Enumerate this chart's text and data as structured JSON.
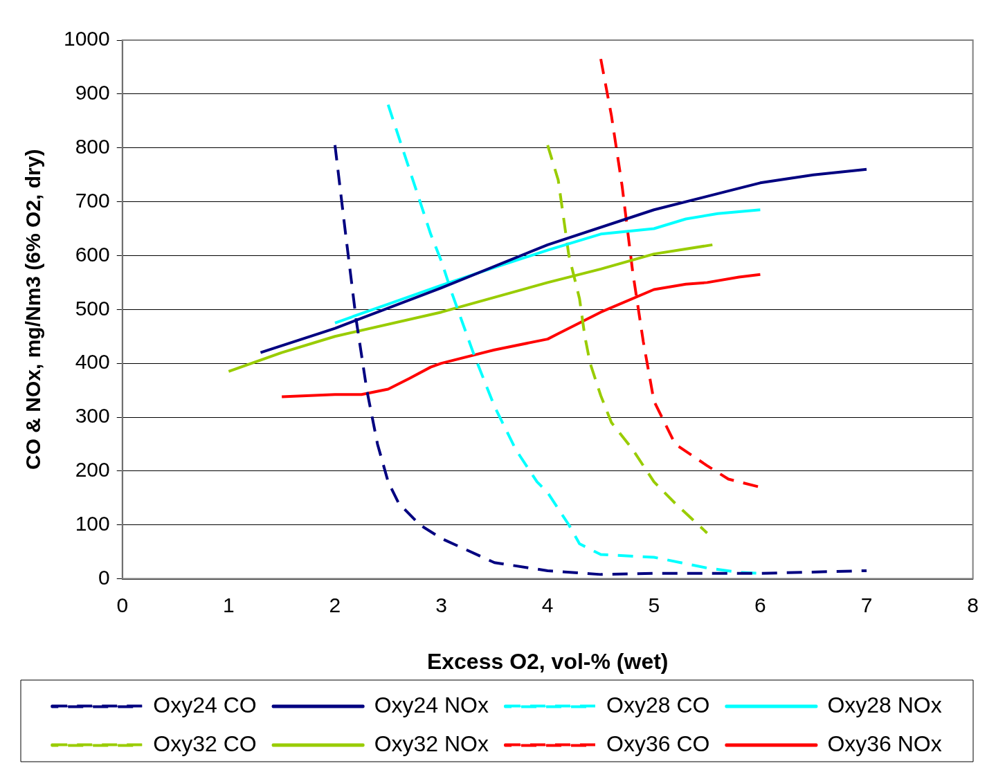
{
  "chart_data": {
    "type": "line",
    "xlabel": "Excess O2, vol-% (wet)",
    "ylabel": "CO & NOx, mg/Nm3 (6% O2, dry)",
    "xlim": [
      0,
      8
    ],
    "xticks": [
      0,
      1,
      2,
      3,
      4,
      5,
      6,
      7,
      8
    ],
    "ylim": [
      0,
      1000
    ],
    "yticks": [
      0,
      100,
      200,
      300,
      400,
      500,
      600,
      700,
      800,
      900,
      1000
    ],
    "grid": "y",
    "legend": "bottom",
    "marker": "none",
    "series": [
      {
        "name": "Oxy24 CO",
        "color": "#000080",
        "line_style": "dashed",
        "x": [
          2.0,
          2.1,
          2.2,
          2.3,
          2.4,
          2.5,
          2.6,
          2.8,
          3.0,
          3.5,
          4.0,
          4.5,
          5,
          6,
          7
        ],
        "values": [
          805,
          640,
          480,
          350,
          250,
          180,
          140,
          100,
          75,
          30,
          15,
          8,
          10,
          10,
          15
        ]
      },
      {
        "name": "Oxy24 NOx",
        "color": "#000080",
        "line_style": "solid",
        "x": [
          1.3,
          2,
          3,
          4,
          5,
          5.8,
          6,
          6.5,
          7
        ],
        "values": [
          420,
          465,
          540,
          620,
          685,
          725,
          735,
          750,
          760
        ]
      },
      {
        "name": "Oxy28 CO",
        "color": "#00ffff",
        "line_style": "dashed",
        "x": [
          2.5,
          2.7,
          2.9,
          3.0,
          3.1,
          3.3,
          3.5,
          3.7,
          3.9,
          4.0,
          4.2,
          4.3,
          4.5,
          5,
          5.5,
          5.8,
          6
        ],
        "values": [
          880,
          760,
          640,
          590,
          530,
          420,
          320,
          240,
          180,
          160,
          100,
          65,
          45,
          40,
          20,
          12,
          10
        ]
      },
      {
        "name": "Oxy28 NOx",
        "color": "#00ffff",
        "line_style": "solid",
        "x": [
          2,
          2.5,
          3,
          3.5,
          4,
          4.5,
          5,
          5.3,
          5.6,
          6
        ],
        "values": [
          475,
          510,
          545,
          578,
          610,
          640,
          650,
          668,
          678,
          685
        ]
      },
      {
        "name": "Oxy32 CO",
        "color": "#99cc00",
        "line_style": "dashed",
        "x": [
          4,
          4.1,
          4.2,
          4.3,
          4.35,
          4.4,
          4.5,
          4.6,
          4.8,
          5,
          5.2,
          5.5
        ],
        "values": [
          805,
          740,
          600,
          520,
          450,
          400,
          340,
          290,
          240,
          180,
          140,
          85
        ]
      },
      {
        "name": "Oxy32 NOx",
        "color": "#99cc00",
        "line_style": "solid",
        "x": [
          1,
          1.5,
          2,
          3,
          4,
          4.5,
          5,
          5.55
        ],
        "values": [
          385,
          420,
          450,
          495,
          550,
          575,
          603,
          620
        ]
      },
      {
        "name": "Oxy36 CO",
        "color": "#ff0000",
        "line_style": "dashed",
        "x": [
          4.5,
          4.6,
          4.7,
          4.8,
          4.9,
          5,
          5.1,
          5.2,
          5.5,
          5.7,
          6
        ],
        "values": [
          965,
          860,
          730,
          570,
          440,
          330,
          290,
          250,
          210,
          185,
          170
        ]
      },
      {
        "name": "Oxy36 NOx",
        "color": "#ff0000",
        "line_style": "solid",
        "x": [
          1.5,
          2,
          2.25,
          2.5,
          2.7,
          2.9,
          3,
          3.5,
          4,
          4.1,
          4.5,
          5,
          5.3,
          5.5,
          5.8,
          6
        ],
        "values": [
          338,
          342,
          342,
          352,
          372,
          393,
          400,
          425,
          445,
          455,
          495,
          537,
          547,
          550,
          560,
          565
        ]
      }
    ]
  }
}
